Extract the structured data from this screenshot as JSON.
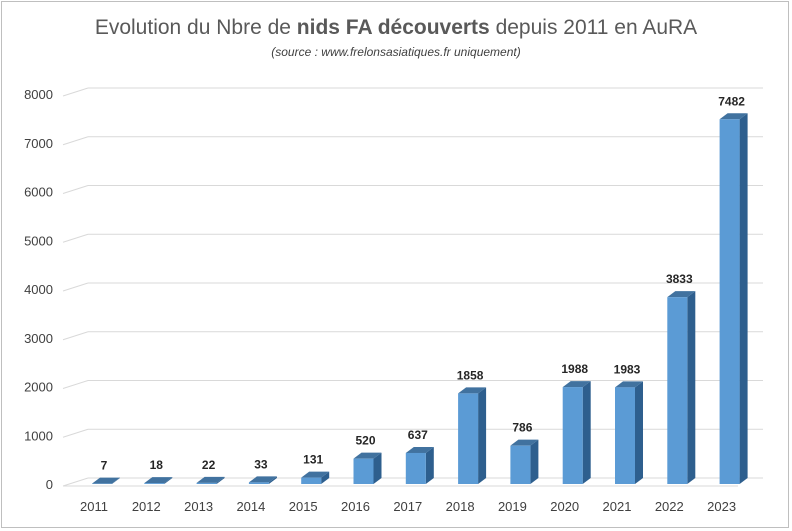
{
  "title": {
    "prefix": "Evolution du Nbre de ",
    "emphasis": "nids FA découverts",
    "suffix": " depuis 2011 en AuRA"
  },
  "subtitle": "(source : www.frelonsasiatiques.fr uniquement)",
  "chart_data": {
    "type": "bar",
    "title": "Evolution du Nbre de nids FA découverts depuis 2011 en AuRA",
    "subtitle": "(source : www.frelonsasiatiques.fr uniquement)",
    "xlabel": "",
    "ylabel": "",
    "categories": [
      "2011",
      "2012",
      "2013",
      "2014",
      "2015",
      "2016",
      "2017",
      "2018",
      "2019",
      "2020",
      "2021",
      "2022",
      "2023"
    ],
    "values": [
      7,
      18,
      22,
      33,
      131,
      520,
      637,
      1858,
      786,
      1988,
      1983,
      3833,
      7482
    ],
    "ylim": [
      0,
      8000
    ],
    "yticks": [
      0,
      1000,
      2000,
      3000,
      4000,
      5000,
      6000,
      7000,
      8000
    ],
    "grid": true,
    "legend": "none",
    "style": "3d-column",
    "colors": {
      "bar_front": "#5b9bd5",
      "bar_side": "#2e5f8e",
      "bar_top": "#41729f",
      "grid": "#d9d9d9"
    }
  }
}
